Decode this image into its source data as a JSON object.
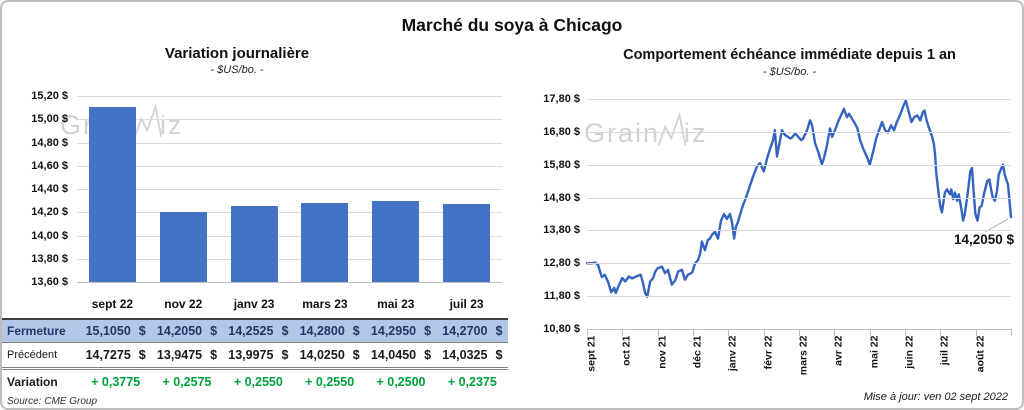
{
  "header": {
    "title": "Marché du soya à Chicago"
  },
  "watermark": {
    "part1": "Grain",
    "part2": "iz"
  },
  "colors": {
    "bar": "#4472C4",
    "line": "#3564BE",
    "fermeture_bg": "#B4C6E7",
    "fermeture_text": "#1F3864",
    "variation_text": "#00A03C"
  },
  "chart_data": [
    {
      "type": "bar",
      "title": "Variation journalière",
      "subtitle": "- $US/bo. -",
      "categories": [
        "sept 22",
        "nov 22",
        "janv 23",
        "mars 23",
        "mai 23",
        "juil 23"
      ],
      "values": [
        15.105,
        14.205,
        14.2525,
        14.28,
        14.295,
        14.27
      ],
      "xlabel": "",
      "ylabel": "",
      "ylim": [
        13.6,
        15.2
      ],
      "ytick_step": 0.2,
      "ytick_labels": [
        "15,20 $",
        "15,00 $",
        "14,80 $",
        "14,60 $",
        "14,40 $",
        "14,20 $",
        "14,00 $",
        "13,80 $",
        "13,60 $"
      ],
      "grid": true,
      "legend": false
    },
    {
      "type": "line",
      "title": "Comportement échéance immédiate depuis 1 an",
      "subtitle": "- $US/bo. -",
      "x_labels": [
        "sept 21",
        "oct 21",
        "nov 21",
        "déc 21",
        "janv 22",
        "févr 22",
        "mars 22",
        "avr 22",
        "mai 22",
        "juin 22",
        "juil 22",
        "août 22"
      ],
      "ylim": [
        10.8,
        17.8
      ],
      "ytick_step": 1.0,
      "ytick_labels": [
        "17,80 $",
        "16,80 $",
        "15,80 $",
        "14,80 $",
        "13,80 $",
        "12,80 $",
        "11,80 $",
        "10,80 $"
      ],
      "grid": true,
      "legend": false,
      "annotation": {
        "text": "14,2050 $",
        "value": 14.205
      },
      "last_value": 14.205,
      "points": [
        [
          0.0,
          12.8
        ],
        [
          0.012,
          12.8
        ],
        [
          0.019,
          12.82
        ],
        [
          0.026,
          12.76
        ],
        [
          0.035,
          12.38
        ],
        [
          0.042,
          12.45
        ],
        [
          0.05,
          12.22
        ],
        [
          0.057,
          11.92
        ],
        [
          0.064,
          12.05
        ],
        [
          0.068,
          11.9
        ],
        [
          0.075,
          12.12
        ],
        [
          0.083,
          12.35
        ],
        [
          0.09,
          12.25
        ],
        [
          0.099,
          12.4
        ],
        [
          0.106,
          12.34
        ],
        [
          0.113,
          12.38
        ],
        [
          0.12,
          12.42
        ],
        [
          0.127,
          12.45
        ],
        [
          0.132,
          12.2
        ],
        [
          0.137,
          11.9
        ],
        [
          0.142,
          11.78
        ],
        [
          0.149,
          12.25
        ],
        [
          0.156,
          12.35
        ],
        [
          0.161,
          12.55
        ],
        [
          0.167,
          12.65
        ],
        [
          0.177,
          12.7
        ],
        [
          0.184,
          12.5
        ],
        [
          0.191,
          12.6
        ],
        [
          0.2,
          12.15
        ],
        [
          0.208,
          12.28
        ],
        [
          0.215,
          12.55
        ],
        [
          0.224,
          12.6
        ],
        [
          0.231,
          12.3
        ],
        [
          0.238,
          12.45
        ],
        [
          0.248,
          12.52
        ],
        [
          0.255,
          12.8
        ],
        [
          0.262,
          12.9
        ],
        [
          0.267,
          13.1
        ],
        [
          0.271,
          13.46
        ],
        [
          0.278,
          13.2
        ],
        [
          0.285,
          13.5
        ],
        [
          0.29,
          13.56
        ],
        [
          0.295,
          13.67
        ],
        [
          0.302,
          13.76
        ],
        [
          0.309,
          13.55
        ],
        [
          0.316,
          14.1
        ],
        [
          0.323,
          14.3
        ],
        [
          0.33,
          14.15
        ],
        [
          0.337,
          14.3
        ],
        [
          0.342,
          14.05
        ],
        [
          0.347,
          13.55
        ],
        [
          0.351,
          13.9
        ],
        [
          0.356,
          14.05
        ],
        [
          0.366,
          14.5
        ],
        [
          0.375,
          14.8
        ],
        [
          0.384,
          15.15
        ],
        [
          0.392,
          15.45
        ],
        [
          0.401,
          15.75
        ],
        [
          0.408,
          15.85
        ],
        [
          0.417,
          15.6
        ],
        [
          0.425,
          16.0
        ],
        [
          0.432,
          16.3
        ],
        [
          0.439,
          16.55
        ],
        [
          0.443,
          16.85
        ],
        [
          0.448,
          16.05
        ],
        [
          0.453,
          16.4
        ],
        [
          0.46,
          16.85
        ],
        [
          0.467,
          16.7
        ],
        [
          0.474,
          16.65
        ],
        [
          0.479,
          16.6
        ],
        [
          0.483,
          16.62
        ],
        [
          0.491,
          16.75
        ],
        [
          0.498,
          16.65
        ],
        [
          0.505,
          16.55
        ],
        [
          0.509,
          16.58
        ],
        [
          0.519,
          16.85
        ],
        [
          0.526,
          17.15
        ],
        [
          0.531,
          17.0
        ],
        [
          0.538,
          16.45
        ],
        [
          0.545,
          16.2
        ],
        [
          0.554,
          15.82
        ],
        [
          0.559,
          16.0
        ],
        [
          0.566,
          16.4
        ],
        [
          0.573,
          16.9
        ],
        [
          0.578,
          16.65
        ],
        [
          0.585,
          16.85
        ],
        [
          0.592,
          17.1
        ],
        [
          0.599,
          17.3
        ],
        [
          0.606,
          17.5
        ],
        [
          0.613,
          17.25
        ],
        [
          0.618,
          17.35
        ],
        [
          0.625,
          17.2
        ],
        [
          0.632,
          17.05
        ],
        [
          0.638,
          16.9
        ],
        [
          0.644,
          16.55
        ],
        [
          0.651,
          16.3
        ],
        [
          0.658,
          16.1
        ],
        [
          0.663,
          15.95
        ],
        [
          0.667,
          15.8
        ],
        [
          0.675,
          16.2
        ],
        [
          0.682,
          16.6
        ],
        [
          0.689,
          16.85
        ],
        [
          0.696,
          17.1
        ],
        [
          0.703,
          16.85
        ],
        [
          0.71,
          16.78
        ],
        [
          0.717,
          17.0
        ],
        [
          0.724,
          16.85
        ],
        [
          0.731,
          17.1
        ],
        [
          0.738,
          17.3
        ],
        [
          0.745,
          17.55
        ],
        [
          0.752,
          17.75
        ],
        [
          0.758,
          17.45
        ],
        [
          0.765,
          17.1
        ],
        [
          0.772,
          17.25
        ],
        [
          0.779,
          17.3
        ],
        [
          0.786,
          17.15
        ],
        [
          0.792,
          17.4
        ],
        [
          0.796,
          17.45
        ],
        [
          0.801,
          17.15
        ],
        [
          0.806,
          16.95
        ],
        [
          0.81,
          16.8
        ],
        [
          0.814,
          16.65
        ],
        [
          0.818,
          16.45
        ],
        [
          0.821,
          16.1
        ],
        [
          0.824,
          15.5
        ],
        [
          0.829,
          14.95
        ],
        [
          0.833,
          14.55
        ],
        [
          0.837,
          14.35
        ],
        [
          0.844,
          14.95
        ],
        [
          0.849,
          15.05
        ],
        [
          0.856,
          14.9
        ],
        [
          0.859,
          15.05
        ],
        [
          0.864,
          14.75
        ],
        [
          0.868,
          14.95
        ],
        [
          0.873,
          14.7
        ],
        [
          0.877,
          14.9
        ],
        [
          0.883,
          14.45
        ],
        [
          0.887,
          14.1
        ],
        [
          0.891,
          14.3
        ],
        [
          0.898,
          14.95
        ],
        [
          0.904,
          15.6
        ],
        [
          0.908,
          15.7
        ],
        [
          0.912,
          14.95
        ],
        [
          0.916,
          14.3
        ],
        [
          0.921,
          14.1
        ],
        [
          0.926,
          14.5
        ],
        [
          0.931,
          14.55
        ],
        [
          0.936,
          14.9
        ],
        [
          0.944,
          15.3
        ],
        [
          0.949,
          15.35
        ],
        [
          0.953,
          15.05
        ],
        [
          0.957,
          14.8
        ],
        [
          0.962,
          14.7
        ],
        [
          0.967,
          15.0
        ],
        [
          0.971,
          15.5
        ],
        [
          0.976,
          15.65
        ],
        [
          0.981,
          15.8
        ],
        [
          0.986,
          15.45
        ],
        [
          0.993,
          15.2
        ],
        [
          1.0,
          14.205
        ]
      ]
    }
  ],
  "table": {
    "rows": [
      {
        "label": "Fermeture",
        "unit": "$",
        "values": [
          "15,1050",
          "14,2050",
          "14,2525",
          "14,2800",
          "14,2950",
          "14,2700"
        ]
      },
      {
        "label": "Précédent",
        "unit": "$",
        "values": [
          "14,7275",
          "13,9475",
          "13,9975",
          "14,0250",
          "14,0450",
          "14,0325"
        ]
      },
      {
        "label": "Variation",
        "unit": "",
        "values": [
          "+ 0,3775",
          "+ 0,2575",
          "+ 0,2550",
          "+ 0,2550",
          "+ 0,2500",
          "+ 0,2375"
        ]
      }
    ],
    "source": "Source: CME Group"
  },
  "footer": {
    "updated": "Mise à jour: ven 02 sept 2022"
  }
}
